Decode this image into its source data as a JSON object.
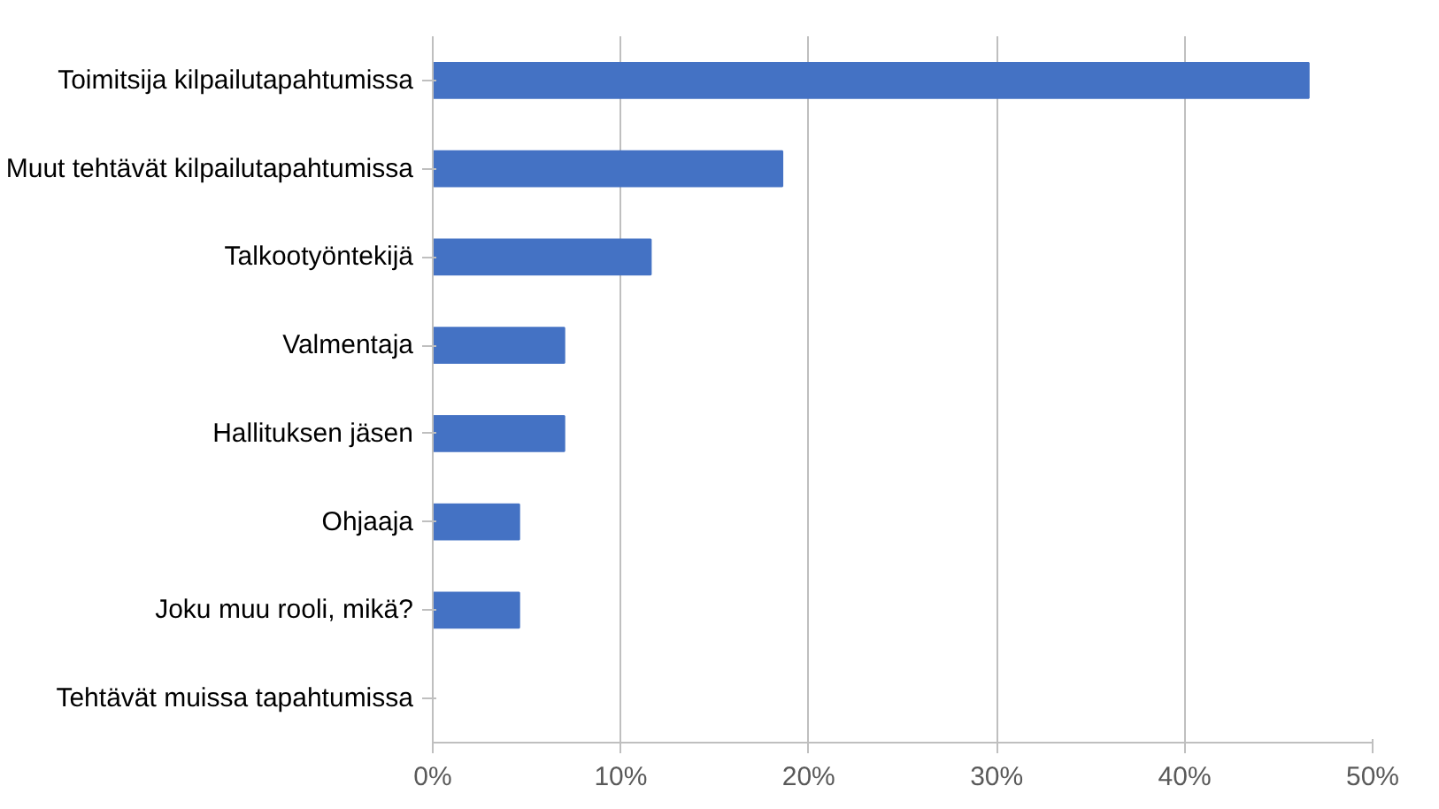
{
  "chart_data": {
    "type": "bar",
    "orientation": "horizontal",
    "categories": [
      "Toimitsija kilpailutapahtumissa",
      "Muut tehtävät kilpailutapahtumissa",
      "Talkootyöntekijä",
      "Valmentaja",
      "Hallituksen jäsen",
      "Ohjaaja",
      "Joku muu rooli, mikä?",
      "Tehtävät muissa tapahtumissa"
    ],
    "values": [
      46.6,
      18.6,
      11.6,
      7.0,
      7.0,
      4.6,
      4.6,
      0
    ],
    "color": "#4472c4",
    "xlim": [
      0,
      50
    ],
    "xticks": [
      {
        "value": 0,
        "label": "0%"
      },
      {
        "value": 10,
        "label": "10%"
      },
      {
        "value": 20,
        "label": "20%"
      },
      {
        "value": 30,
        "label": "30%"
      },
      {
        "value": 40,
        "label": "40%"
      },
      {
        "value": 50,
        "label": "50%"
      }
    ],
    "grid": "x"
  }
}
